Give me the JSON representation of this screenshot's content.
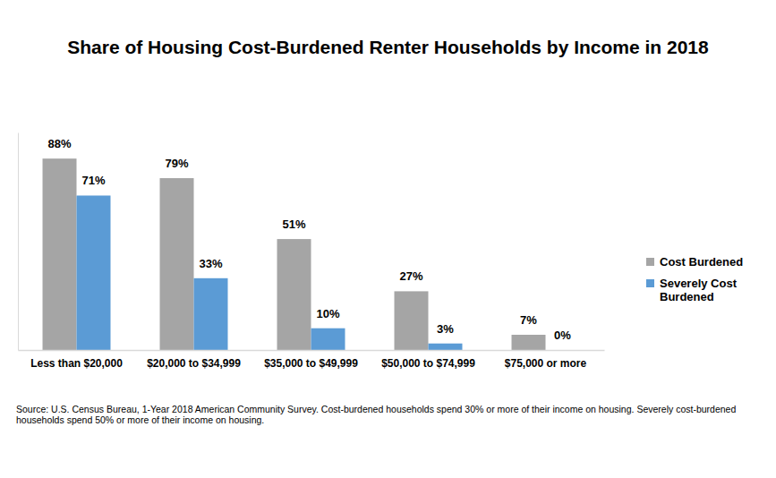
{
  "chart_data": {
    "type": "bar",
    "title": "Share of Housing Cost-Burdened Renter Households by Income in 2018",
    "categories": [
      "Less than $20,000",
      "$20,000 to $34,999",
      "$35,000 to $49,999",
      "$50,000 to $74,999",
      "$75,000 or more"
    ],
    "series": [
      {
        "name": "Cost Burdened",
        "color": "#a5a5a5",
        "values": [
          88,
          79,
          51,
          27,
          7
        ],
        "value_labels": [
          "88%",
          "79%",
          "51%",
          "27%",
          "7%"
        ]
      },
      {
        "name": "Severely Cost Burdened",
        "color": "#5b9bd5",
        "values": [
          71,
          33,
          10,
          3,
          0
        ],
        "value_labels": [
          "71%",
          "33%",
          "10%",
          "3%",
          "0%"
        ]
      }
    ],
    "ylim": [
      0,
      100
    ],
    "data_labels": true,
    "tick_labels": "x",
    "legend": "right",
    "grid": false,
    "source": "Source: U.S. Census Bureau, 1-Year 2018 American Community Survey. Cost-burdened households spend 30% or more of their income on housing. Severely cost-burdened households spend 50% or more of their income on housing."
  }
}
